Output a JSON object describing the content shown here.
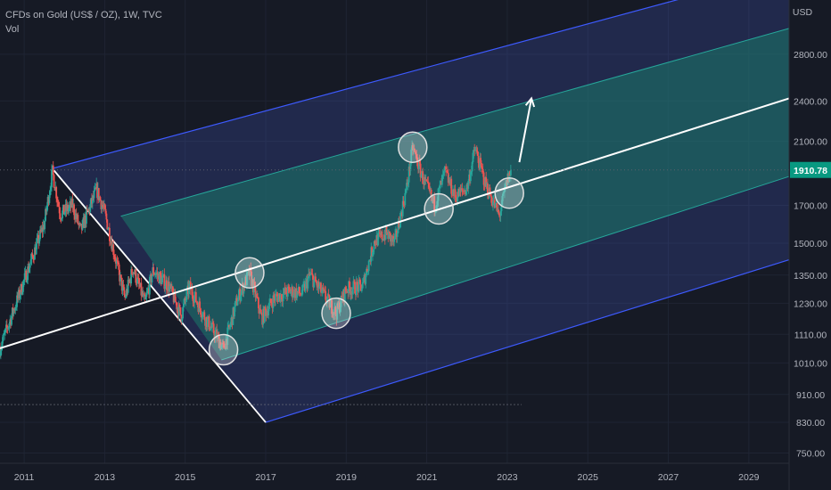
{
  "header": {
    "symbol_line": "CFDs on Gold (US$ / OZ), 1W, TVC",
    "indicator": "Vol"
  },
  "chart_data": {
    "type": "candlestick",
    "currency_label": "USD",
    "price_axis": {
      "scale": "log",
      "range": [
        725,
        3350
      ],
      "ticks": [
        "750.00",
        "830.00",
        "910.00",
        "1010.00",
        "1110.00",
        "1230.00",
        "1350.00",
        "1500.00",
        "1700.00",
        "1910.78",
        "2100.00",
        "2400.00",
        "2800.00"
      ],
      "ticks_numeric": [
        750,
        830,
        910,
        1010,
        1110,
        1230,
        1350,
        1500,
        1700,
        2100,
        2400,
        2800
      ]
    },
    "time_axis": {
      "range": [
        2010.4,
        2030.0
      ],
      "ticks": [
        "2011",
        "2013",
        "2015",
        "2017",
        "2019",
        "2021",
        "2023",
        "2025",
        "2027",
        "2029"
      ],
      "ticks_numeric": [
        2011,
        2013,
        2015,
        2017,
        2019,
        2021,
        2023,
        2025,
        2027,
        2029
      ]
    },
    "last_price": {
      "value": 1910.78,
      "label": "1910.78"
    },
    "series": [
      {
        "type": "ohlc-weekly-approx",
        "path": [
          [
            2010.4,
            1060
          ],
          [
            2010.8,
            1230
          ],
          [
            2011.2,
            1430
          ],
          [
            2011.5,
            1600
          ],
          [
            2011.7,
            1900
          ],
          [
            2011.9,
            1650
          ],
          [
            2012.2,
            1700
          ],
          [
            2012.4,
            1560
          ],
          [
            2012.8,
            1790
          ],
          [
            2013.0,
            1660
          ],
          [
            2013.3,
            1400
          ],
          [
            2013.5,
            1250
          ],
          [
            2013.7,
            1380
          ],
          [
            2014.0,
            1230
          ],
          [
            2014.2,
            1370
          ],
          [
            2014.6,
            1300
          ],
          [
            2014.9,
            1180
          ],
          [
            2015.1,
            1300
          ],
          [
            2015.5,
            1170
          ],
          [
            2015.8,
            1100
          ],
          [
            2015.95,
            1055
          ],
          [
            2016.3,
            1250
          ],
          [
            2016.6,
            1360
          ],
          [
            2016.9,
            1170
          ],
          [
            2017.2,
            1250
          ],
          [
            2017.6,
            1280
          ],
          [
            2017.9,
            1270
          ],
          [
            2018.1,
            1350
          ],
          [
            2018.5,
            1250
          ],
          [
            2018.75,
            1190
          ],
          [
            2019.0,
            1290
          ],
          [
            2019.4,
            1300
          ],
          [
            2019.7,
            1510
          ],
          [
            2020.0,
            1550
          ],
          [
            2020.2,
            1500
          ],
          [
            2020.5,
            1800
          ],
          [
            2020.65,
            2060
          ],
          [
            2020.9,
            1860
          ],
          [
            2021.2,
            1700
          ],
          [
            2021.45,
            1900
          ],
          [
            2021.7,
            1750
          ],
          [
            2022.0,
            1800
          ],
          [
            2022.2,
            2050
          ],
          [
            2022.45,
            1830
          ],
          [
            2022.8,
            1640
          ],
          [
            2023.0,
            1850
          ],
          [
            2023.1,
            1910
          ]
        ]
      }
    ],
    "pitchfork": {
      "median_line": {
        "from": [
          2010.4,
          1060
        ],
        "to": [
          2030.0,
          2420
        ]
      },
      "inner_upper": {
        "from": [
          2013.4,
          1640
        ],
        "to": [
          2030.0,
          3050
        ]
      },
      "inner_lower": {
        "from": [
          2015.9,
          1020
        ],
        "to": [
          2030.0,
          1870
        ]
      },
      "outer_upper": {
        "from": [
          2011.7,
          1920
        ],
        "to": [
          2027.2,
          3350
        ]
      },
      "outer_lower": {
        "from": [
          2017.0,
          830
        ],
        "to": [
          2030.0,
          1420
        ]
      },
      "handle": {
        "from": [
          2011.7,
          1920
        ],
        "to": [
          2017.0,
          830
        ]
      }
    },
    "highlight_circles": [
      [
        2020.65,
        2060
      ],
      [
        2021.3,
        1680
      ],
      [
        2016.6,
        1360
      ],
      [
        2018.75,
        1190
      ],
      [
        2015.95,
        1055
      ],
      [
        2023.05,
        1770
      ]
    ],
    "projection_arrow": {
      "from": [
        2023.3,
        1960
      ],
      "to": [
        2023.6,
        2420
      ]
    },
    "dashed_level": 880,
    "colors": {
      "background": "#161a25",
      "up": "#26a69a",
      "down": "#ef5350",
      "outer_band": "#3f51b5",
      "inner_band": "#1b7a6a",
      "median": "#ffffff",
      "price_tag": "#089981"
    }
  }
}
